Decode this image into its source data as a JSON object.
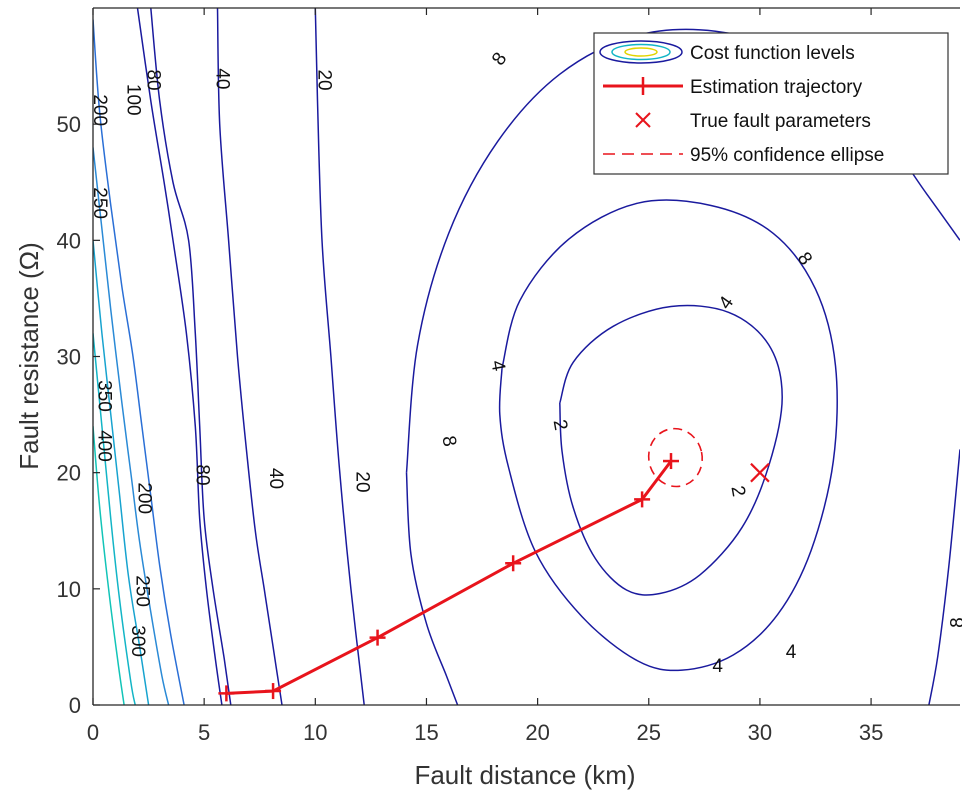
{
  "chart_data": {
    "type": "line",
    "xlabel": "Fault distance (km)",
    "ylabel": "Fault resistance (Ω)",
    "xlim": [
      0,
      39
    ],
    "ylim": [
      0,
      60
    ],
    "x_ticks": [
      "0",
      "5",
      "10",
      "15",
      "20",
      "25",
      "30",
      "35"
    ],
    "y_ticks": [
      "0",
      "10",
      "20",
      "30",
      "40",
      "50"
    ],
    "grid": false,
    "legend_position": "top-right",
    "legend": [
      "Cost function levels",
      "Estimation trajectory",
      "True fault parameters",
      "95% confidence ellipse"
    ],
    "colors": {
      "contour_low": "#1a1a9e",
      "contour_mid": "#2a6fd6",
      "contour_high": "#12b5c6",
      "trajectory": "#e8141c",
      "true_marker": "#e8141c",
      "ellipse": "#e8141c"
    },
    "series": [
      {
        "name": "Estimation trajectory",
        "x": [
          6.0,
          8.1,
          12.8,
          18.9,
          24.7,
          26.0
        ],
        "y": [
          1.0,
          1.2,
          5.8,
          12.2,
          17.7,
          21.0
        ]
      }
    ],
    "true_fault": {
      "x": 30.0,
      "y": 20.0
    },
    "confidence_ellipse": {
      "center_x": 26.2,
      "center_y": 21.3,
      "semi_x": 1.2,
      "semi_y": 2.5
    },
    "contour_levels": [
      "2",
      "4",
      "8",
      "20",
      "40",
      "80",
      "100",
      "200",
      "250",
      "300",
      "350",
      "400"
    ],
    "contour_labels": [
      {
        "text": "8",
        "x": 18.3,
        "y": 55.6,
        "angle": -55
      },
      {
        "text": "20",
        "x": 10.4,
        "y": 53.8,
        "angle": 90
      },
      {
        "text": "40",
        "x": 5.8,
        "y": 53.9,
        "angle": 90
      },
      {
        "text": "80",
        "x": 2.7,
        "y": 53.8,
        "angle": 90
      },
      {
        "text": "100",
        "x": 1.8,
        "y": 52.1,
        "angle": 90
      },
      {
        "text": "200",
        "x": 0.3,
        "y": 51.2,
        "angle": 90
      },
      {
        "text": "250",
        "x": 0.3,
        "y": 43.2,
        "angle": 90
      },
      {
        "text": "350",
        "x": 0.5,
        "y": 26.6,
        "angle": 90
      },
      {
        "text": "400",
        "x": 0.5,
        "y": 22.3,
        "angle": 90
      },
      {
        "text": "8",
        "x": 32.0,
        "y": 38.4,
        "angle": 55
      },
      {
        "text": "4",
        "x": 28.5,
        "y": 34.6,
        "angle": -55
      },
      {
        "text": "4",
        "x": 18.2,
        "y": 29.2,
        "angle": 80
      },
      {
        "text": "2",
        "x": 21.0,
        "y": 24.1,
        "angle": 80
      },
      {
        "text": "8",
        "x": 16.0,
        "y": 22.7,
        "angle": 80
      },
      {
        "text": "2",
        "x": 29.0,
        "y": 18.4,
        "angle": 80
      },
      {
        "text": "80",
        "x": 4.9,
        "y": 19.8,
        "angle": 90
      },
      {
        "text": "40",
        "x": 8.2,
        "y": 19.5,
        "angle": 90
      },
      {
        "text": "20",
        "x": 12.1,
        "y": 19.2,
        "angle": 90
      },
      {
        "text": "200",
        "x": 2.3,
        "y": 17.8,
        "angle": 90
      },
      {
        "text": "250",
        "x": 2.2,
        "y": 9.8,
        "angle": 90
      },
      {
        "text": "300",
        "x": 2.0,
        "y": 5.5,
        "angle": 90
      },
      {
        "text": "4",
        "x": 28.1,
        "y": 3.3,
        "angle": 0
      },
      {
        "text": "4",
        "x": 31.4,
        "y": 4.5,
        "angle": 0
      },
      {
        "text": "8",
        "x": 38.9,
        "y": 7.1,
        "angle": -90
      }
    ],
    "contours": [
      {
        "level": "2",
        "color": "#1a1a9e",
        "points": [
          [
            21.0,
            26.0
          ],
          [
            21.6,
            29.5
          ],
          [
            23.4,
            32.6
          ],
          [
            26.0,
            34.3
          ],
          [
            28.6,
            33.8
          ],
          [
            30.4,
            31.0
          ],
          [
            31.0,
            26.5
          ],
          [
            30.4,
            20.6
          ],
          [
            29.2,
            15.3
          ],
          [
            27.3,
            11.2
          ],
          [
            25.5,
            9.6
          ],
          [
            24.0,
            9.9
          ],
          [
            22.6,
            12.6
          ],
          [
            21.6,
            17.0
          ],
          [
            21.1,
            21.8
          ],
          [
            21.0,
            26.0
          ]
        ]
      },
      {
        "level": "4",
        "color": "#1a1a9e",
        "points": [
          [
            18.4,
            29.0
          ],
          [
            19.2,
            34.8
          ],
          [
            21.4,
            40.1
          ],
          [
            24.5,
            43.2
          ],
          [
            27.8,
            43.0
          ],
          [
            30.6,
            40.6
          ],
          [
            32.5,
            35.8
          ],
          [
            33.4,
            29.2
          ],
          [
            33.3,
            21.0
          ],
          [
            32.3,
            13.3
          ],
          [
            30.8,
            7.8
          ],
          [
            28.8,
            4.3
          ],
          [
            26.5,
            3.0
          ],
          [
            24.5,
            3.8
          ],
          [
            22.0,
            7.6
          ],
          [
            19.9,
            13.2
          ],
          [
            18.7,
            20.4
          ],
          [
            18.3,
            25.0
          ],
          [
            18.4,
            29.0
          ]
        ]
      },
      {
        "level": "8",
        "color": "#1a1a9e",
        "points": [
          [
            14.1,
            20.0
          ],
          [
            14.6,
            31.0
          ],
          [
            16.0,
            40.6
          ],
          [
            18.2,
            48.5
          ],
          [
            21.0,
            54.3
          ],
          [
            24.4,
            57.6
          ],
          [
            28.0,
            58.0
          ],
          [
            31.4,
            56.0
          ],
          [
            34.7,
            51.3
          ],
          [
            37.5,
            44.0
          ],
          [
            39.0,
            40.0
          ]
        ]
      },
      {
        "level": "8",
        "color": "#1a1a9e",
        "points": [
          [
            14.1,
            20.0
          ],
          [
            14.3,
            13.0
          ],
          [
            15.0,
            7.0
          ],
          [
            15.9,
            2.5
          ],
          [
            16.4,
            0
          ]
        ]
      },
      {
        "level": "8",
        "color": "#1a1a9e",
        "points": [
          [
            39.0,
            22.0
          ],
          [
            38.5,
            12.0
          ],
          [
            38.0,
            4.2
          ],
          [
            37.6,
            0
          ]
        ]
      },
      {
        "level": "20",
        "color": "#1a1a9e",
        "points": [
          [
            10.0,
            60.0
          ],
          [
            10.1,
            52.0
          ],
          [
            10.3,
            40.0
          ],
          [
            10.7,
            30.0
          ],
          [
            11.1,
            20.0
          ],
          [
            11.6,
            10.0
          ],
          [
            12.2,
            0.0
          ]
        ]
      },
      {
        "level": "40",
        "color": "#1a1a9e",
        "points": [
          [
            5.6,
            60.0
          ],
          [
            5.7,
            50.0
          ],
          [
            6.1,
            40.0
          ],
          [
            6.5,
            30.0
          ],
          [
            6.9,
            22.0
          ],
          [
            7.3,
            15.0
          ],
          [
            7.7,
            10.0
          ],
          [
            8.1,
            5.0
          ],
          [
            8.5,
            0.0
          ]
        ]
      },
      {
        "level": "80",
        "color": "#1a1a9e",
        "points": [
          [
            2.6,
            60.0
          ],
          [
            3.0,
            52.0
          ],
          [
            3.6,
            45.0
          ],
          [
            4.3,
            40.0
          ],
          [
            4.6,
            32.0
          ],
          [
            4.8,
            24.0
          ],
          [
            5.0,
            16.0
          ],
          [
            5.4,
            10.0
          ],
          [
            5.9,
            4.0
          ],
          [
            6.2,
            0.0
          ]
        ]
      },
      {
        "level": "100",
        "color": "#1a1a9e",
        "points": [
          [
            2.0,
            60.0
          ],
          [
            2.6,
            52.0
          ],
          [
            3.2,
            45.0
          ],
          [
            3.6,
            40.0
          ],
          [
            4.2,
            32.0
          ],
          [
            4.6,
            24.0
          ],
          [
            4.8,
            16.0
          ],
          [
            5.1,
            10.0
          ],
          [
            5.5,
            4.0
          ],
          [
            5.8,
            0.0
          ]
        ]
      },
      {
        "level": "200",
        "color": "#2a6fd6",
        "points": [
          [
            0.0,
            59.0
          ],
          [
            0.3,
            51.0
          ],
          [
            0.8,
            43.0
          ],
          [
            1.3,
            36.0
          ],
          [
            1.8,
            30.0
          ],
          [
            2.2,
            24.0
          ],
          [
            2.6,
            18.0
          ],
          [
            3.0,
            12.0
          ],
          [
            3.5,
            6.0
          ],
          [
            4.1,
            0.0
          ]
        ]
      },
      {
        "level": "250",
        "color": "#2a8ad6",
        "points": [
          [
            0.0,
            48.0
          ],
          [
            0.4,
            41.0
          ],
          [
            0.8,
            34.0
          ],
          [
            1.3,
            26.0
          ],
          [
            1.7,
            20.0
          ],
          [
            2.1,
            14.0
          ],
          [
            2.6,
            8.0
          ],
          [
            3.1,
            2.5
          ],
          [
            3.4,
            0.0
          ]
        ]
      },
      {
        "level": "300",
        "color": "#17a3cf",
        "points": [
          [
            0.0,
            40.0
          ],
          [
            0.4,
            32.0
          ],
          [
            0.8,
            25.0
          ],
          [
            1.2,
            18.0
          ],
          [
            1.6,
            11.0
          ],
          [
            2.1,
            5.0
          ],
          [
            2.5,
            0.0
          ]
        ]
      },
      {
        "level": "350",
        "color": "#12b5c6",
        "points": [
          [
            0.0,
            32.0
          ],
          [
            0.4,
            24.0
          ],
          [
            0.8,
            16.0
          ],
          [
            1.2,
            9.0
          ],
          [
            1.7,
            2.0
          ],
          [
            1.9,
            0.0
          ]
        ]
      },
      {
        "level": "400",
        "color": "#12c4b8",
        "points": [
          [
            0.0,
            24.0
          ],
          [
            0.3,
            17.0
          ],
          [
            0.7,
            10.0
          ],
          [
            1.1,
            4.0
          ],
          [
            1.4,
            0.0
          ]
        ]
      }
    ]
  }
}
